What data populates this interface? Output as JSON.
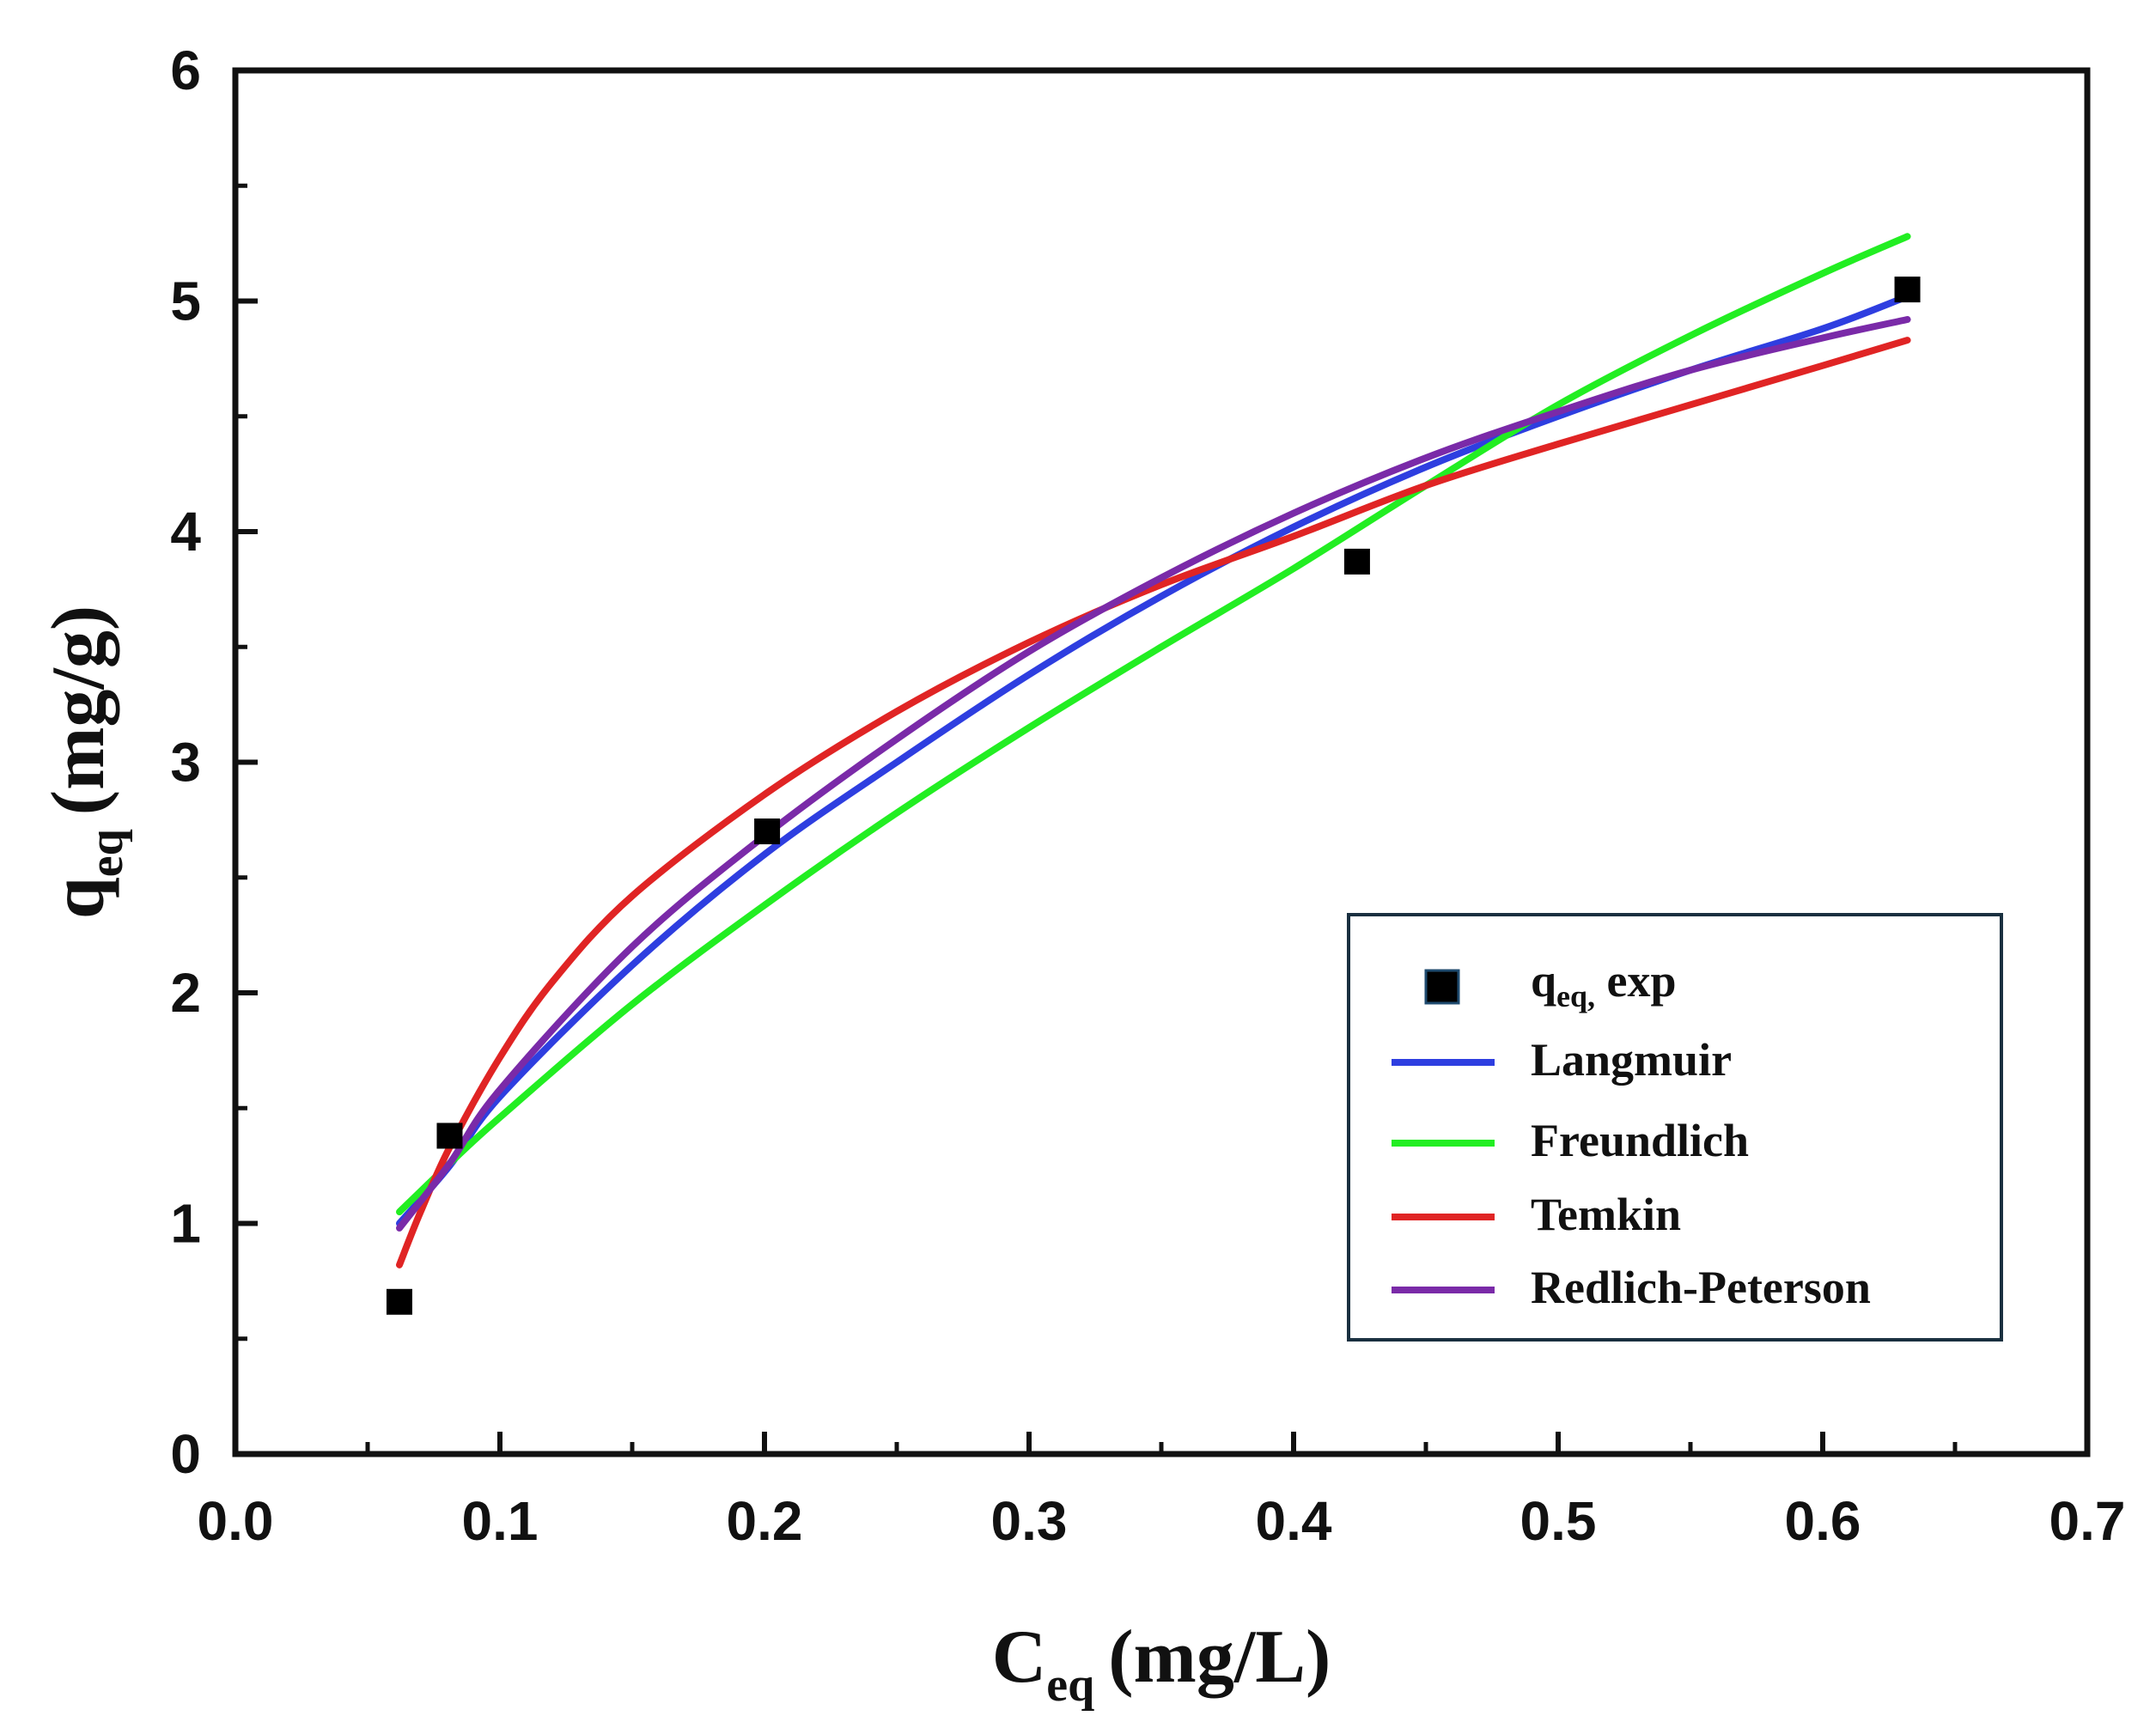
{
  "chart_data": {
    "type": "scatter",
    "xlabel": {
      "main": "C",
      "sub": "eq",
      "unit": "(mg/L)"
    },
    "ylabel": {
      "main": "q",
      "sub": "eq",
      "unit": "(mg/g)"
    },
    "xlim": [
      0.0,
      0.7
    ],
    "ylim": [
      0,
      6
    ],
    "xticks": [
      "0.0",
      "0.1",
      "0.2",
      "0.3",
      "0.4",
      "0.5",
      "0.6",
      "0.7"
    ],
    "yticks": [
      "0",
      "1",
      "2",
      "3",
      "4",
      "5",
      "6"
    ],
    "grid": false,
    "legend_position": "bottom-right",
    "experimental": {
      "name": "q_eq, exp",
      "legend_main": "q",
      "legend_sub": "eq,",
      "legend_rest": " exp",
      "color": "#000000",
      "x": [
        0.062,
        0.081,
        0.201,
        0.424,
        0.632
      ],
      "y": [
        0.66,
        1.38,
        2.7,
        3.87,
        5.05
      ]
    },
    "series": [
      {
        "name": "Langmuir",
        "color": "#2e3ee0",
        "x": [
          0.062,
          0.081,
          0.1,
          0.15,
          0.2,
          0.25,
          0.3,
          0.35,
          0.4,
          0.45,
          0.5,
          0.55,
          0.6,
          0.632
        ],
        "y": [
          1.0,
          1.25,
          1.55,
          2.12,
          2.6,
          3.0,
          3.38,
          3.72,
          4.02,
          4.28,
          4.5,
          4.7,
          4.88,
          5.02
        ]
      },
      {
        "name": "Freundlich",
        "color": "#22ee22",
        "x": [
          0.062,
          0.081,
          0.1,
          0.15,
          0.2,
          0.25,
          0.3,
          0.35,
          0.4,
          0.45,
          0.5,
          0.55,
          0.6,
          0.632
        ],
        "y": [
          1.05,
          1.26,
          1.46,
          1.95,
          2.38,
          2.78,
          3.15,
          3.5,
          3.84,
          4.2,
          4.55,
          4.85,
          5.12,
          5.28
        ]
      },
      {
        "name": "Temkin",
        "color": "#e02424",
        "x": [
          0.062,
          0.07,
          0.081,
          0.1,
          0.12,
          0.15,
          0.2,
          0.25,
          0.3,
          0.35,
          0.4,
          0.45,
          0.5,
          0.55,
          0.6,
          0.632
        ],
        "y": [
          0.82,
          1.05,
          1.33,
          1.72,
          2.05,
          2.42,
          2.86,
          3.22,
          3.52,
          3.77,
          3.98,
          4.2,
          4.38,
          4.55,
          4.72,
          4.83
        ]
      },
      {
        "name": "Redlich-Peterson",
        "color": "#7a2aa8",
        "x": [
          0.062,
          0.081,
          0.1,
          0.15,
          0.2,
          0.25,
          0.3,
          0.35,
          0.4,
          0.45,
          0.5,
          0.55,
          0.6,
          0.632
        ],
        "y": [
          0.98,
          1.26,
          1.58,
          2.2,
          2.68,
          3.1,
          3.48,
          3.8,
          4.08,
          4.32,
          4.52,
          4.7,
          4.84,
          4.92
        ]
      }
    ]
  }
}
